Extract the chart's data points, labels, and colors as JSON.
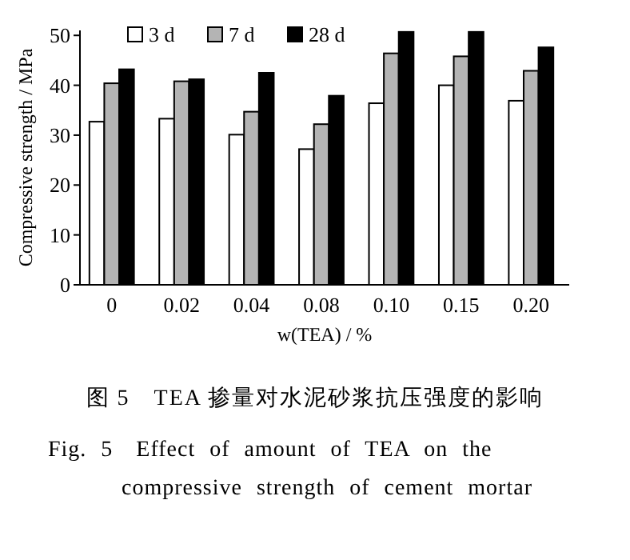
{
  "chart_data": {
    "type": "bar",
    "xlabel": "w(TEA) / %",
    "ylabel": "Compressive strength / MPa",
    "categories": [
      "0",
      "0.02",
      "0.04",
      "0.08",
      "0.10",
      "0.15",
      "0.20"
    ],
    "series": [
      {
        "name": "3 d",
        "color": "#ffffff",
        "values": [
          32.7,
          33.3,
          30.1,
          27.2,
          36.4,
          40.0,
          36.9
        ]
      },
      {
        "name": "7 d",
        "color": "#b4b4b4",
        "values": [
          40.4,
          40.8,
          34.7,
          32.2,
          46.4,
          45.8,
          42.9
        ]
      },
      {
        "name": "28 d",
        "color": "#000000",
        "values": [
          43.2,
          41.2,
          42.5,
          37.9,
          50.7,
          50.7,
          47.6
        ]
      }
    ],
    "ylim": [
      0,
      51
    ],
    "yticks": [
      0,
      10,
      20,
      30,
      40,
      50
    ],
    "grid": false,
    "legend": "top",
    "annotations": [
      "图 5　TEA 掺量对水泥砂浆抗压强度的影响",
      "Fig. 5　Effect of amount of TEA on the compressive strength of cement mortar"
    ]
  }
}
